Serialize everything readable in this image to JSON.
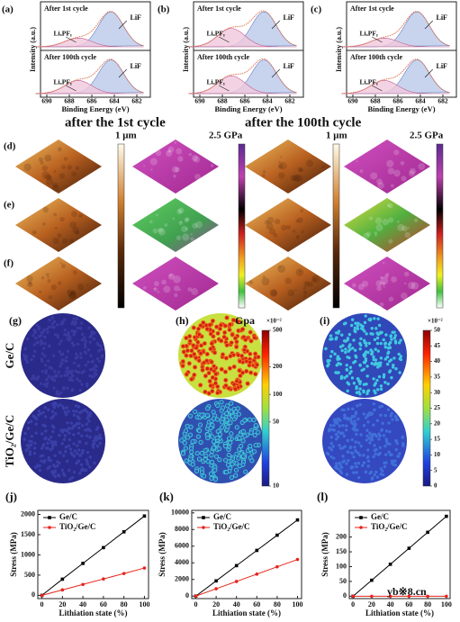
{
  "xps": [
    {
      "label": "(a)",
      "panels": [
        {
          "title": "After 1st cycle",
          "peaks": [
            "LiF",
            "LiₓPFᵧ"
          ]
        },
        {
          "title": "After 100th cycle",
          "peaks": [
            "LiF",
            "LiₓPFᵧ"
          ]
        }
      ],
      "xticks": [
        690,
        688,
        686,
        684,
        682
      ],
      "xlabel": "Binding Energy (eV)",
      "ylabel": "Intensity (a.u.)"
    },
    {
      "label": "(b)",
      "panels": [
        {
          "title": "After 1st cycle",
          "peaks": [
            "LiF",
            "LiₓPFᵧ"
          ]
        },
        {
          "title": "After 100th cycle",
          "peaks": [
            "LiF",
            "LiₓPFᵧ"
          ]
        }
      ],
      "xticks": [
        690,
        688,
        686,
        684,
        682
      ],
      "xlabel": "Binding Energy (eV)",
      "ylabel": "Intensity (a.u.)"
    },
    {
      "label": "(c)",
      "panels": [
        {
          "title": "After 1st cycle",
          "peaks": [
            "LiF",
            "LiₓPFᵧ"
          ]
        },
        {
          "title": "After 100th cycle",
          "peaks": [
            "LiF",
            "LiₓPFᵧ"
          ]
        }
      ],
      "xticks": [
        690,
        688,
        686,
        684,
        682
      ],
      "xlabel": "Binding Energy (eV)",
      "ylabel": "Intensity (a.u.)"
    }
  ],
  "afm": {
    "cols": [
      "after the 1st cycle",
      "after the 100th cycle"
    ],
    "rows": [
      "(d)",
      "(e)",
      "(f)"
    ],
    "height_scale": [
      "1 μm",
      "1 μm"
    ],
    "modulus_scale": [
      "2.5 GPa",
      "2.5 GPa"
    ]
  },
  "sim": {
    "rows": [
      "Ge/C",
      "TiO₂/Ge/C"
    ],
    "panels": [
      {
        "label": "(g)"
      },
      {
        "label": "(h)",
        "unit": "Gpa",
        "exponent": "×10⁻²",
        "ticks": [
          500,
          200,
          100,
          50,
          10
        ]
      },
      {
        "label": "(i)",
        "exponent": "×10⁻²",
        "ticks": [
          50,
          45,
          40,
          35,
          30,
          25,
          20,
          15,
          10,
          5,
          0
        ]
      }
    ]
  },
  "watermark": "yb※8.cn",
  "chart_data": [
    {
      "type": "line",
      "label": "(j)",
      "xlabel": "Lithiation state (%)",
      "ylabel": "Stress (MPa)",
      "x": [
        0,
        20,
        40,
        60,
        80,
        100
      ],
      "xlim": [
        -4,
        104
      ],
      "xticks": [
        0,
        20,
        40,
        60,
        80,
        100
      ],
      "ylim": [
        -80,
        2100
      ],
      "yticks": [
        0,
        500,
        1000,
        1500,
        2000
      ],
      "legend": "upper left",
      "series": [
        {
          "name": "Ge/C",
          "color": "#000000",
          "values": [
            0,
            400,
            790,
            1180,
            1570,
            1960
          ]
        },
        {
          "name": "TiO₂/Ge/C",
          "color": "#e8231c",
          "values": [
            0,
            135,
            270,
            405,
            540,
            675
          ]
        }
      ]
    },
    {
      "type": "line",
      "label": "(k)",
      "xlabel": "Lithiation state (%)",
      "ylabel": "Stress (MPa)",
      "x": [
        0,
        20,
        40,
        60,
        80,
        100
      ],
      "xlim": [
        -4,
        104
      ],
      "xticks": [
        0,
        20,
        40,
        60,
        80,
        100
      ],
      "ylim": [
        -300,
        10300
      ],
      "yticks": [
        0,
        2000,
        4000,
        6000,
        8000,
        10000
      ],
      "legend": "upper left",
      "series": [
        {
          "name": "Ge/C",
          "color": "#000000",
          "values": [
            0,
            1830,
            3660,
            5490,
            7320,
            9150
          ]
        },
        {
          "name": "TiO₂/Ge/C",
          "color": "#e8231c",
          "values": [
            0,
            880,
            1760,
            2640,
            3520,
            4400
          ]
        }
      ]
    },
    {
      "type": "line",
      "label": "(l)",
      "xlabel": "Lithiation state (%)",
      "ylabel": "Stress (MPa)",
      "x": [
        0,
        20,
        40,
        60,
        80,
        100
      ],
      "xlim": [
        -4,
        104
      ],
      "xticks": [
        0,
        20,
        40,
        60,
        80,
        100
      ],
      "ylim": [
        -8,
        290
      ],
      "yticks": [
        0,
        50,
        100,
        150,
        200
      ],
      "legend": "upper left",
      "series": [
        {
          "name": "Ge/C",
          "color": "#000000",
          "values": [
            0,
            54,
            108,
            162,
            216,
            270
          ]
        },
        {
          "name": "TiO₂/Ge/C",
          "color": "#e8231c",
          "values": [
            0,
            0,
            0,
            0,
            0,
            0
          ]
        }
      ]
    }
  ]
}
